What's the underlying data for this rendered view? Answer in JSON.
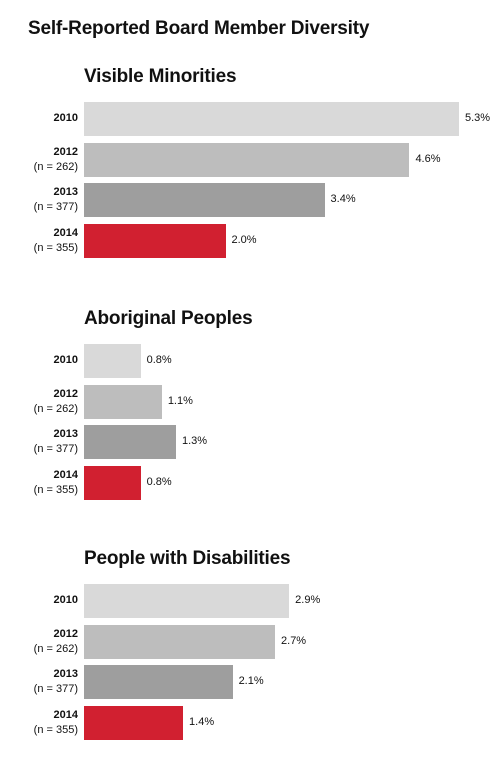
{
  "title": "Self-Reported Board Member Diversity",
  "categories": [
    {
      "year": "2010",
      "n": ""
    },
    {
      "year": "2012",
      "n": "(n = 262)"
    },
    {
      "year": "2013",
      "n": "(n = 377)"
    },
    {
      "year": "2014",
      "n": "(n = 355)"
    }
  ],
  "colors": [
    "#d9d9d9",
    "#bdbdbd",
    "#9e9e9e",
    "#d12030"
  ],
  "value_format_suffix": "%",
  "chart_data": [
    {
      "type": "bar",
      "orientation": "horizontal",
      "title": "Visible Minorities",
      "categories": [
        "2010",
        "2012",
        "2013",
        "2014"
      ],
      "values": [
        5.3,
        4.6,
        3.4,
        2.0
      ],
      "labels": [
        "5.3%",
        "4.6%",
        "3.4%",
        "2.0%"
      ]
    },
    {
      "type": "bar",
      "orientation": "horizontal",
      "title": "Aboriginal Peoples",
      "categories": [
        "2010",
        "2012",
        "2013",
        "2014"
      ],
      "values": [
        0.8,
        1.1,
        1.3,
        0.8
      ],
      "labels": [
        "0.8%",
        "1.1%",
        "1.3%",
        "0.8%"
      ]
    },
    {
      "type": "bar",
      "orientation": "horizontal",
      "title": "People with Disabilities",
      "categories": [
        "2010",
        "2012",
        "2013",
        "2014"
      ],
      "values": [
        2.9,
        2.7,
        2.1,
        1.4
      ],
      "labels": [
        "2.9%",
        "2.7%",
        "2.1%",
        "1.4%"
      ]
    }
  ]
}
